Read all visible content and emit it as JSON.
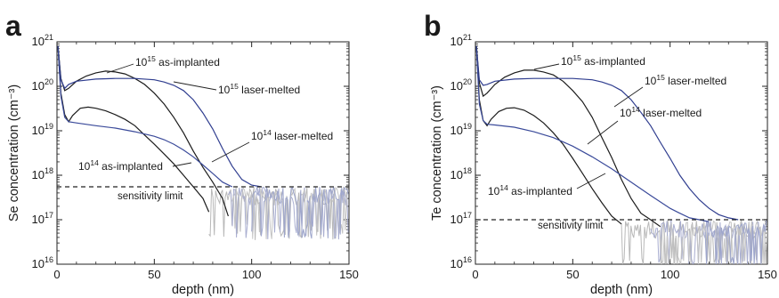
{
  "chart_data": [
    {
      "type": "line",
      "panel": "a",
      "xlabel": "depth (nm)",
      "ylabel": "Se concentration (cm⁻³)",
      "xlim": [
        0,
        150
      ],
      "ylim": [
        1e+16,
        1e+21
      ],
      "y_scale": "log",
      "x_ticks": [
        0,
        50,
        100,
        150
      ],
      "y_ticks": [
        16,
        17,
        18,
        19,
        20,
        21
      ],
      "x_tick_labels": [
        "0",
        "50",
        "100",
        "150"
      ],
      "sensitivity_limit": {
        "value": 5.5e+17,
        "label": "sensitivity limit"
      },
      "annotations": [
        {
          "base": "10",
          "exp": "15",
          "text": " as-implanted"
        },
        {
          "base": "10",
          "exp": "15",
          "text": " laser-melted"
        },
        {
          "base": "10",
          "exp": "14",
          "text": " laser-melted"
        },
        {
          "base": "10",
          "exp": "14",
          "text": " as-implanted"
        }
      ],
      "series": [
        {
          "color": "#1c1c1c",
          "x": [
            0.5,
            2,
            4,
            6,
            10,
            15,
            20,
            25,
            30,
            35,
            40,
            45,
            50,
            55,
            60,
            65,
            70,
            75,
            80,
            85,
            88
          ],
          "y": [
            8e+20,
            1.5e+20,
            8e+19,
            9e+19,
            1.3e+20,
            1.7e+20,
            2e+20,
            2.2e+20,
            2.1e+20,
            1.9e+20,
            1.5e+20,
            1.1e+20,
            7e+19,
            4e+19,
            2e+19,
            9e+18,
            3.5e+18,
            1.5e+18,
            7e+17,
            3e+17,
            1.2e+17
          ]
        },
        {
          "color": "#2f3d8f",
          "x": [
            0.5,
            2,
            4,
            6,
            10,
            20,
            30,
            40,
            50,
            55,
            60,
            65,
            70,
            75,
            80,
            85,
            90,
            95,
            100,
            105
          ],
          "y": [
            8e+20,
            1.4e+20,
            9e+19,
            1.1e+20,
            1.3e+20,
            1.45e+20,
            1.5e+20,
            1.5e+20,
            1.4e+20,
            1.25e+20,
            1.05e+20,
            8e+19,
            5e+19,
            2.5e+19,
            1.1e+19,
            4e+18,
            1.6e+18,
            8e+17,
            6e+17,
            5.5e+17
          ]
        },
        {
          "color": "#1c1c1c",
          "x": [
            0.5,
            2,
            4,
            6,
            8,
            12,
            16,
            20,
            25,
            30,
            35,
            40,
            45,
            50,
            55,
            60,
            65,
            70,
            75,
            78
          ],
          "y": [
            8e+20,
            7e+19,
            2.3e+19,
            1.6e+19,
            2.2e+19,
            3.2e+19,
            3.4e+19,
            3.2e+19,
            2.8e+19,
            2.3e+19,
            1.8e+19,
            1.3e+19,
            8e+18,
            5e+18,
            3e+18,
            1.8e+18,
            1e+18,
            5.5e+17,
            3e+17,
            1.5e+17
          ]
        },
        {
          "color": "#3a4a9a",
          "x": [
            0.5,
            2,
            4,
            6,
            10,
            20,
            30,
            40,
            50,
            55,
            60,
            65,
            70,
            75,
            80,
            85,
            90
          ],
          "y": [
            8e+20,
            6e+19,
            2e+19,
            1.6e+19,
            1.5e+19,
            1.3e+19,
            1.15e+19,
            9.5e+18,
            7.5e+18,
            6.3e+18,
            5e+18,
            3.7e+18,
            2.6e+18,
            1.7e+18,
            1.1e+18,
            7e+17,
            5.5e+17
          ]
        }
      ]
    },
    {
      "type": "line",
      "panel": "b",
      "xlabel": "depth (nm)",
      "ylabel": "Te concentration (cm⁻³)",
      "xlim": [
        0,
        150
      ],
      "ylim": [
        1e+16,
        1e+21
      ],
      "y_scale": "log",
      "x_ticks": [
        0,
        50,
        100,
        150
      ],
      "y_ticks": [
        16,
        17,
        18,
        19,
        20,
        21
      ],
      "x_tick_labels": [
        "0",
        "50",
        "100",
        "150"
      ],
      "sensitivity_limit": {
        "value": 1e+17,
        "label": "sensitivity limit"
      },
      "annotations": [
        {
          "base": "10",
          "exp": "15",
          "text": " as-implanted"
        },
        {
          "base": "10",
          "exp": "15",
          "text": " laser-melted"
        },
        {
          "base": "10",
          "exp": "14",
          "text": " laser-melted"
        },
        {
          "base": "10",
          "exp": "14",
          "text": " as-implanted"
        }
      ],
      "series": [
        {
          "color": "#1c1c1c",
          "x": [
            0.5,
            2,
            4,
            6,
            10,
            15,
            20,
            25,
            30,
            35,
            40,
            45,
            50,
            55,
            60,
            65,
            70,
            75,
            80,
            85,
            90,
            95
          ],
          "y": [
            8e+20,
            1.2e+20,
            6e+19,
            7e+19,
            1.1e+20,
            1.6e+20,
            2e+20,
            2.3e+20,
            2.3e+20,
            2.1e+20,
            1.8e+20,
            1.3e+20,
            8e+19,
            4.5e+19,
            2e+19,
            7e+18,
            2.5e+18,
            8e+17,
            3e+17,
            1.4e+17,
            1e+17,
            7e+16
          ]
        },
        {
          "color": "#2f3d8f",
          "x": [
            0.5,
            2,
            4,
            6,
            10,
            20,
            30,
            40,
            50,
            60,
            65,
            70,
            75,
            80,
            85,
            90,
            95,
            100,
            105,
            110,
            115,
            120,
            125,
            130,
            135
          ],
          "y": [
            8e+20,
            1.4e+20,
            1.05e+20,
            1.1e+20,
            1.3e+20,
            1.45e+20,
            1.5e+20,
            1.5e+20,
            1.5e+20,
            1.4e+20,
            1.25e+20,
            1.05e+20,
            8e+19,
            5e+19,
            2.6e+19,
            1.3e+19,
            5.5e+18,
            2.4e+18,
            1e+18,
            5e+17,
            2.8e+17,
            1.8e+17,
            1.3e+17,
            1.1e+17,
            1e+17
          ]
        },
        {
          "color": "#1c1c1c",
          "x": [
            0.5,
            2,
            4,
            6,
            8,
            12,
            16,
            20,
            25,
            30,
            35,
            40,
            45,
            50,
            55,
            60,
            65,
            70,
            75
          ],
          "y": [
            8e+20,
            5e+19,
            1.7e+19,
            1.3e+19,
            1.8e+19,
            2.7e+19,
            3.2e+19,
            3.3e+19,
            2.9e+19,
            2.2e+19,
            1.5e+19,
            9e+18,
            5e+18,
            2.4e+18,
            1.1e+18,
            5e+17,
            2.4e+17,
            1.2e+17,
            8e+16
          ]
        },
        {
          "color": "#3a4a9a",
          "x": [
            0.5,
            2,
            4,
            6,
            10,
            20,
            30,
            40,
            50,
            60,
            70,
            80,
            90,
            100,
            105,
            110,
            115,
            120
          ],
          "y": [
            8e+20,
            4e+19,
            1.7e+19,
            1.4e+19,
            1.35e+19,
            1.2e+19,
            9.5e+18,
            7e+18,
            4.5e+18,
            2.6e+18,
            1.4e+18,
            7e+17,
            3.5e+17,
            1.8e+17,
            1.4e+17,
            1.1e+17,
            1e+17,
            9e+16
          ]
        }
      ]
    }
  ]
}
